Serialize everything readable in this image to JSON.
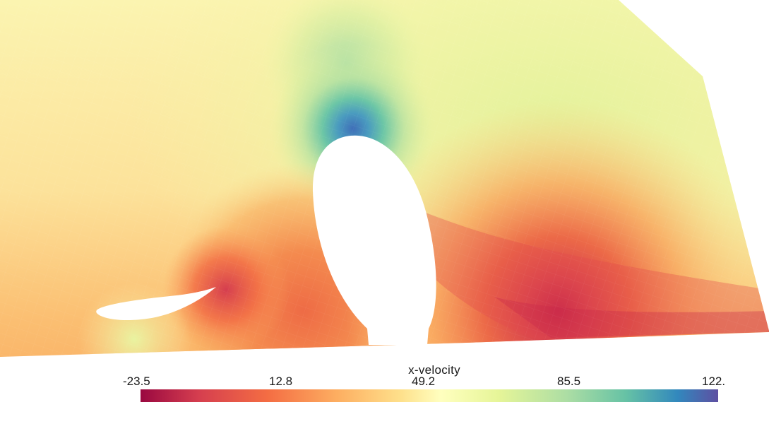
{
  "colorbar": {
    "title": "x-velocity",
    "ticks": [
      "-23.5",
      "12.8",
      "49.2",
      "85.5",
      "122."
    ],
    "range": [
      -23.5,
      122.0
    ],
    "colormap": "spectral-reversed",
    "colors": {
      "low": "#9e0142",
      "mid_low": "#f46d43",
      "mid": "#ffffbf",
      "mid_high": "#66c2a5",
      "high": "#5e4fa2"
    }
  },
  "scene": {
    "background": "#ffffff",
    "field_variable": "x-velocity",
    "bodies": [
      "airfoil",
      "ellipse"
    ]
  }
}
